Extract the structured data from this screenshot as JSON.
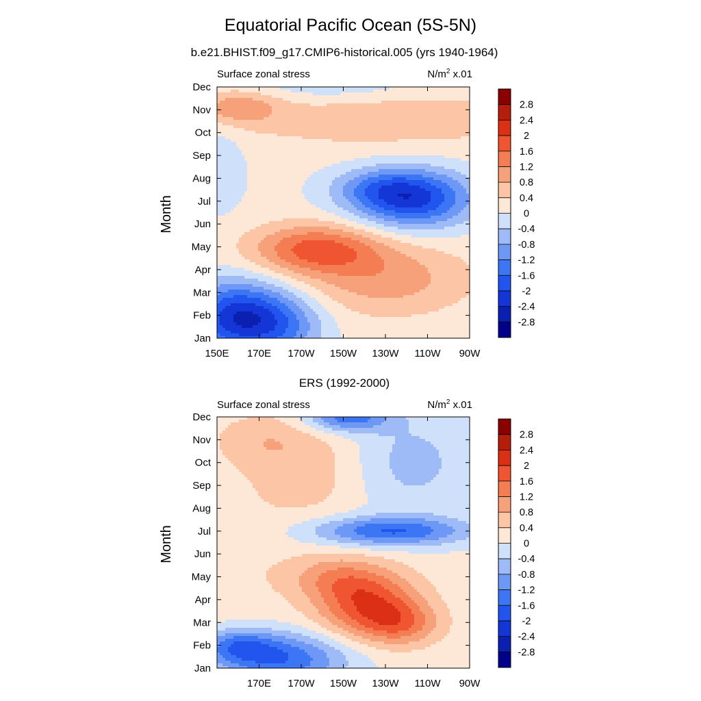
{
  "figure": {
    "title": "Equatorial Pacific Ocean (5S-5N)",
    "subtitle_top": "b.e21.BHIST.f09_g17.CMIP6-historical.005 (yrs 1940-1964)",
    "subtitle_bottom": "ERS (1992-2000)"
  },
  "colorbar": {
    "levels": [
      -2.8,
      -2.4,
      -2,
      -1.6,
      -1.2,
      -0.8,
      -0.4,
      0,
      0.4,
      0.8,
      1.2,
      1.6,
      2,
      2.4,
      2.8
    ],
    "labels": [
      "2.8",
      "2.4",
      "2",
      "1.6",
      "1.2",
      "0.8",
      "0.4",
      "0",
      "-0.4",
      "-0.8",
      "-1.2",
      "-1.6",
      "-2",
      "-2.4",
      "-2.8"
    ],
    "colors": [
      "#00008b",
      "#0b1fb0",
      "#1436d6",
      "#2155ee",
      "#3c76f5",
      "#6e98f5",
      "#9fbbf7",
      "#cfe1fa",
      "#fde7d6",
      "#fbc5a6",
      "#f7a17b",
      "#f47d54",
      "#ee5530",
      "#db3015",
      "#b51e0b",
      "#8b0000"
    ]
  },
  "chart_data": [
    {
      "type": "heatmap",
      "title": "Surface zonal stress",
      "units_label": "N/m",
      "units_sup": "2",
      "units_scale": "x.01",
      "xlabel": "",
      "ylabel": "Month",
      "x_ticks": [
        "150E",
        "170E",
        "170W",
        "150W",
        "130W",
        "110W",
        "90W"
      ],
      "x_tick_lon": [
        150,
        170,
        190,
        210,
        230,
        250,
        270
      ],
      "y_ticks": [
        "Jan",
        "Feb",
        "Mar",
        "Apr",
        "May",
        "Jun",
        "Jul",
        "Aug",
        "Sep",
        "Oct",
        "Nov",
        "Dec"
      ],
      "xlim_lon": [
        150,
        270
      ],
      "ylim_month": [
        1,
        12
      ],
      "features": [
        {
          "lon": 160,
          "month": 1.9,
          "sx": 17,
          "sy": 1.1,
          "amp": -2.4
        },
        {
          "lon": 183,
          "month": 1.5,
          "sx": 14,
          "sy": 1.0,
          "amp": -0.9
        },
        {
          "lon": 197,
          "month": 4.9,
          "sx": 21,
          "sy": 0.75,
          "amp": 1.6
        },
        {
          "lon": 230,
          "month": 3.6,
          "sx": 28,
          "sy": 1.1,
          "amp": 0.9
        },
        {
          "lon": 243,
          "month": 7.1,
          "sx": 20,
          "sy": 0.9,
          "amp": -2.2
        },
        {
          "lon": 226,
          "month": 7.6,
          "sx": 16,
          "sy": 0.6,
          "amp": -0.7
        },
        {
          "lon": 160,
          "month": 11.1,
          "sx": 13,
          "sy": 0.5,
          "amp": 0.9
        },
        {
          "lon": 230,
          "month": 10.6,
          "sx": 55,
          "sy": 0.9,
          "amp": 0.55
        },
        {
          "lon": 205,
          "month": 12.1,
          "sx": 28,
          "sy": 0.5,
          "amp": -0.5
        },
        {
          "lon": 152,
          "month": 8.5,
          "sx": 8,
          "sy": 1.4,
          "amp": -0.45
        }
      ]
    },
    {
      "type": "heatmap",
      "title": "Surface zonal stress",
      "units_label": "N/m",
      "units_sup": "2",
      "units_scale": "x.01",
      "xlabel": "",
      "ylabel": "Month",
      "x_ticks": [
        "170E",
        "170W",
        "150W",
        "130W",
        "110W",
        "90W"
      ],
      "x_tick_lon": [
        170,
        190,
        210,
        230,
        250,
        270
      ],
      "y_ticks": [
        "Jan",
        "Feb",
        "Mar",
        "Apr",
        "May",
        "Jun",
        "Jul",
        "Aug",
        "Sep",
        "Oct",
        "Nov",
        "Dec"
      ],
      "xlim_lon": [
        150,
        270
      ],
      "ylim_month": [
        1,
        12
      ],
      "features": [
        {
          "lon": 180,
          "month": 1.4,
          "sx": 22,
          "sy": 0.8,
          "amp": -1.7
        },
        {
          "lon": 160,
          "month": 2.0,
          "sx": 12,
          "sy": 0.5,
          "amp": -1.1
        },
        {
          "lon": 222,
          "month": 3.8,
          "sx": 17,
          "sy": 1.0,
          "amp": 1.8
        },
        {
          "lon": 238,
          "month": 2.9,
          "sx": 13,
          "sy": 0.65,
          "amp": 1.0
        },
        {
          "lon": 205,
          "month": 5.0,
          "sx": 16,
          "sy": 0.7,
          "amp": 0.8
        },
        {
          "lon": 232,
          "month": 7.0,
          "sx": 26,
          "sy": 0.45,
          "amp": -1.7
        },
        {
          "lon": 240,
          "month": 10.0,
          "sx": 22,
          "sy": 1.6,
          "amp": -0.7
        },
        {
          "lon": 212,
          "month": 12.0,
          "sx": 14,
          "sy": 0.45,
          "amp": -1.6
        },
        {
          "lon": 195,
          "month": 9.7,
          "sx": 22,
          "sy": 1.6,
          "amp": 0.55
        },
        {
          "lon": 170,
          "month": 11.0,
          "sx": 16,
          "sy": 0.8,
          "amp": 0.45
        },
        {
          "lon": 163,
          "month": 5.5,
          "sx": 14,
          "sy": 2.0,
          "amp": 0.2
        }
      ]
    }
  ]
}
